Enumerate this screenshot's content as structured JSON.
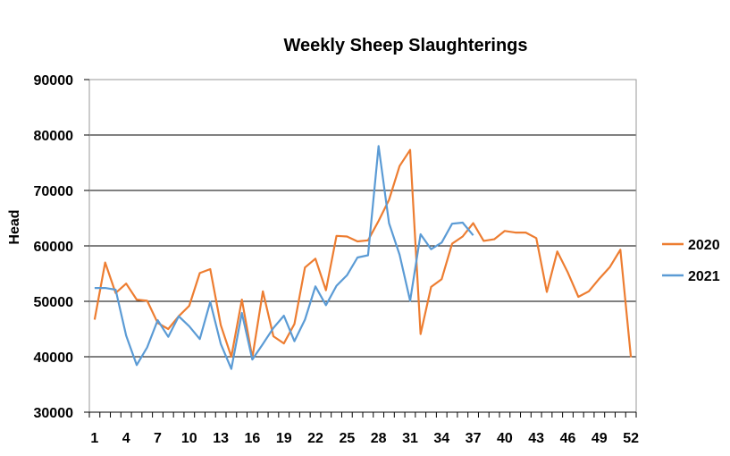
{
  "chart_data": {
    "type": "line",
    "title": "Weekly Sheep Slaughterings",
    "ylabel": "Head",
    "xlabel": "",
    "ylim": [
      30000,
      90000
    ],
    "yticks": [
      30000,
      40000,
      50000,
      60000,
      70000,
      80000,
      90000
    ],
    "xlim": [
      1,
      53
    ],
    "xticks": [
      1,
      4,
      7,
      10,
      13,
      16,
      19,
      22,
      25,
      28,
      31,
      34,
      37,
      40,
      43,
      46,
      49,
      52
    ],
    "grid": "horizontal",
    "legend": "right",
    "series": [
      {
        "name": "2020",
        "color": "#ED7D31",
        "x": [
          1,
          2,
          3,
          4,
          5,
          6,
          7,
          8,
          9,
          10,
          11,
          12,
          13,
          14,
          15,
          16,
          17,
          18,
          19,
          20,
          21,
          22,
          23,
          24,
          25,
          26,
          27,
          28,
          29,
          30,
          31,
          32,
          33,
          34,
          35,
          36,
          37,
          38,
          39,
          40,
          41,
          42,
          43,
          44,
          45,
          46,
          47,
          48,
          49,
          50,
          51,
          52
        ],
        "values": [
          46700,
          57000,
          51500,
          53200,
          50300,
          50100,
          46100,
          45000,
          47300,
          49200,
          55100,
          55800,
          45700,
          40000,
          50300,
          39800,
          51800,
          43700,
          42400,
          45900,
          56100,
          57700,
          52000,
          61800,
          61700,
          60800,
          61000,
          64500,
          68300,
          74400,
          77300,
          44100,
          52600,
          54000,
          60400,
          61700,
          64100,
          60900,
          61200,
          62700,
          62400,
          62400,
          61400,
          51700,
          59000,
          55200,
          50800,
          51800,
          54100,
          56200,
          59300,
          39900
        ]
      },
      {
        "name": "2021",
        "color": "#5B9BD5",
        "x": [
          1,
          2,
          3,
          4,
          5,
          6,
          7,
          8,
          9,
          10,
          11,
          12,
          13,
          14,
          15,
          16,
          17,
          18,
          19,
          20,
          21,
          22,
          23,
          24,
          25,
          26,
          27,
          28,
          29,
          30,
          31,
          32,
          33,
          34,
          35,
          36,
          37
        ],
        "values": [
          52400,
          52400,
          52100,
          43800,
          38500,
          41700,
          46600,
          43600,
          47300,
          45500,
          43200,
          49900,
          42300,
          37800,
          47900,
          39500,
          42300,
          45200,
          47400,
          42800,
          46700,
          52700,
          49300,
          52800,
          54700,
          57900,
          58300,
          78000,
          64100,
          58400,
          50100,
          62100,
          59400,
          60600,
          64000,
          64200,
          61900
        ]
      }
    ]
  }
}
